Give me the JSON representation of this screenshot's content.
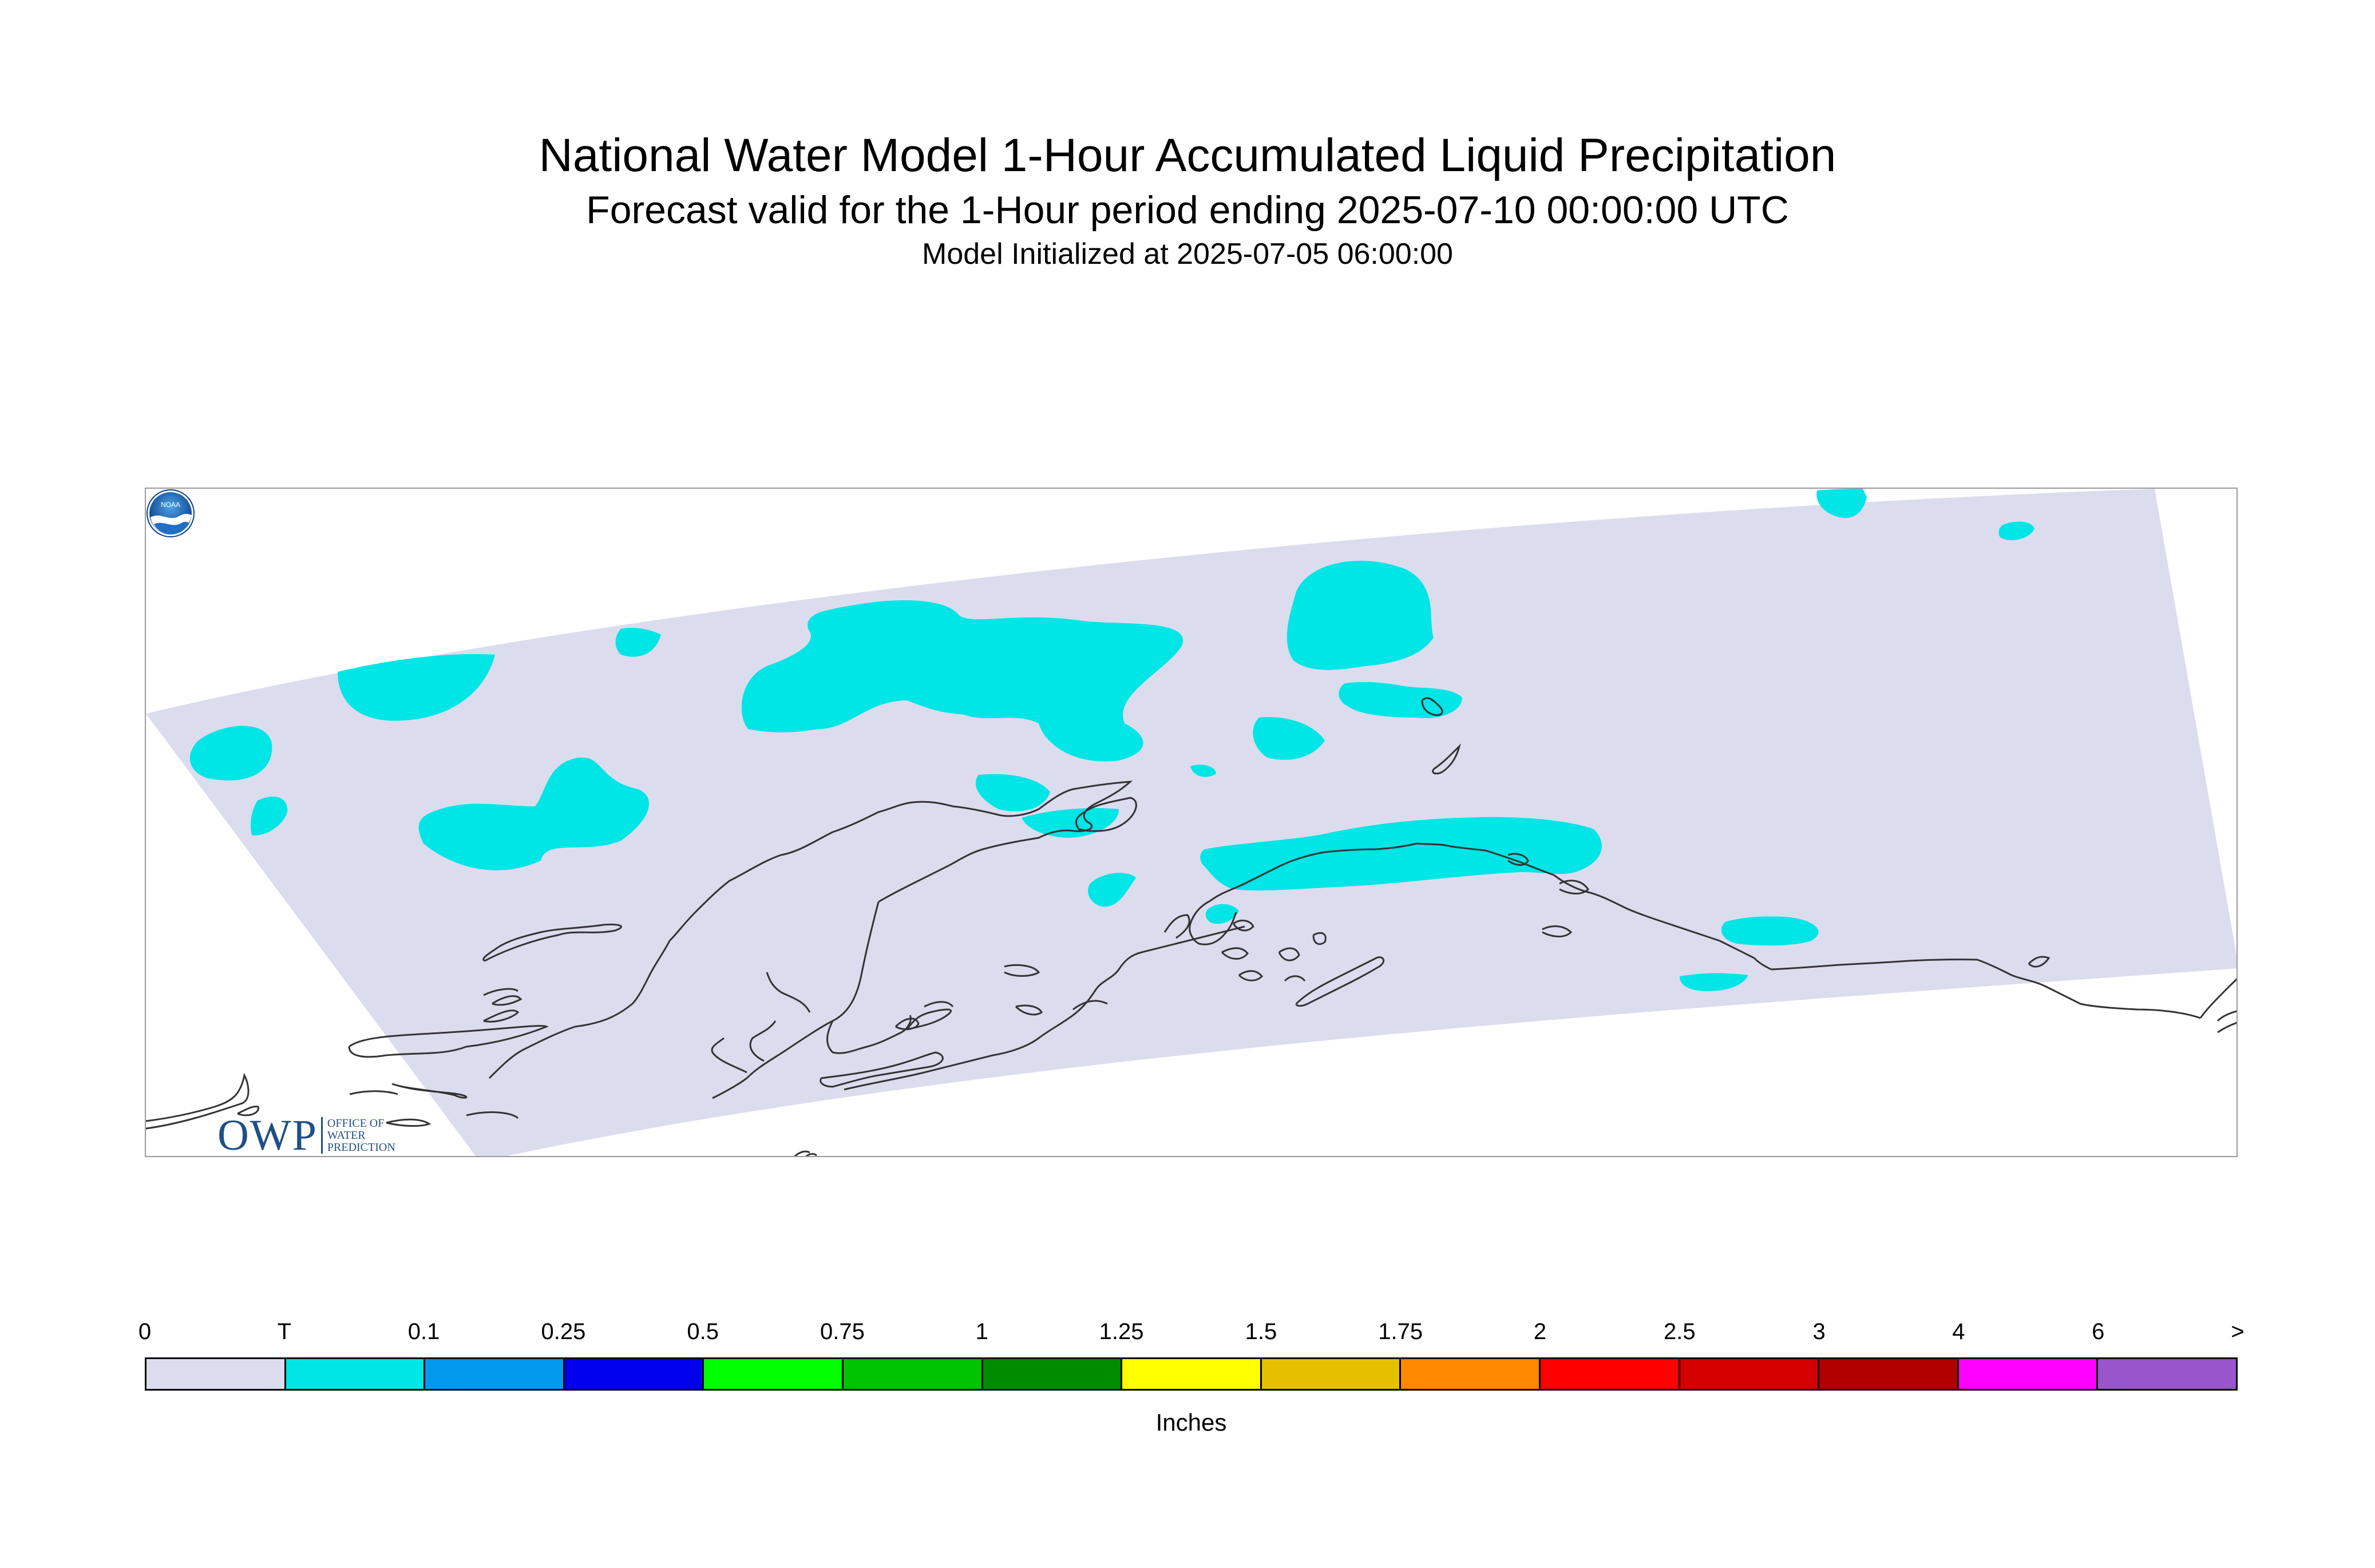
{
  "header": {
    "title": "National Water Model 1-Hour Accumulated Liquid Precipitation",
    "subtitle": "Forecast valid for the 1-Hour period ending 2025-07-10 00:00:00 UTC",
    "init": "Model Initialized at 2025-07-05 06:00:00"
  },
  "map": {
    "domain_color": "#dcdcef",
    "precip_color": "#00e5e5",
    "coast_color": "#333333"
  },
  "logos": {
    "owp_mark": "OWP",
    "owp_lines": [
      "Office of",
      "Water",
      "Prediction"
    ],
    "noaa_text": "NOAA"
  },
  "legend": {
    "units": "Inches",
    "tick_labels": [
      "0",
      "T",
      "0.1",
      "0.25",
      "0.5",
      "0.75",
      "1",
      "1.25",
      "1.5",
      "1.75",
      "2",
      "2.5",
      "3",
      "4",
      "6",
      ">"
    ],
    "colors": [
      "#dcdcef",
      "#00e5e5",
      "#0099ee",
      "#0000ee",
      "#00ff00",
      "#00c400",
      "#008c00",
      "#ffff00",
      "#e5c000",
      "#ff8800",
      "#ff0000",
      "#d40000",
      "#b00000",
      "#ff00ff",
      "#9955cc"
    ]
  }
}
